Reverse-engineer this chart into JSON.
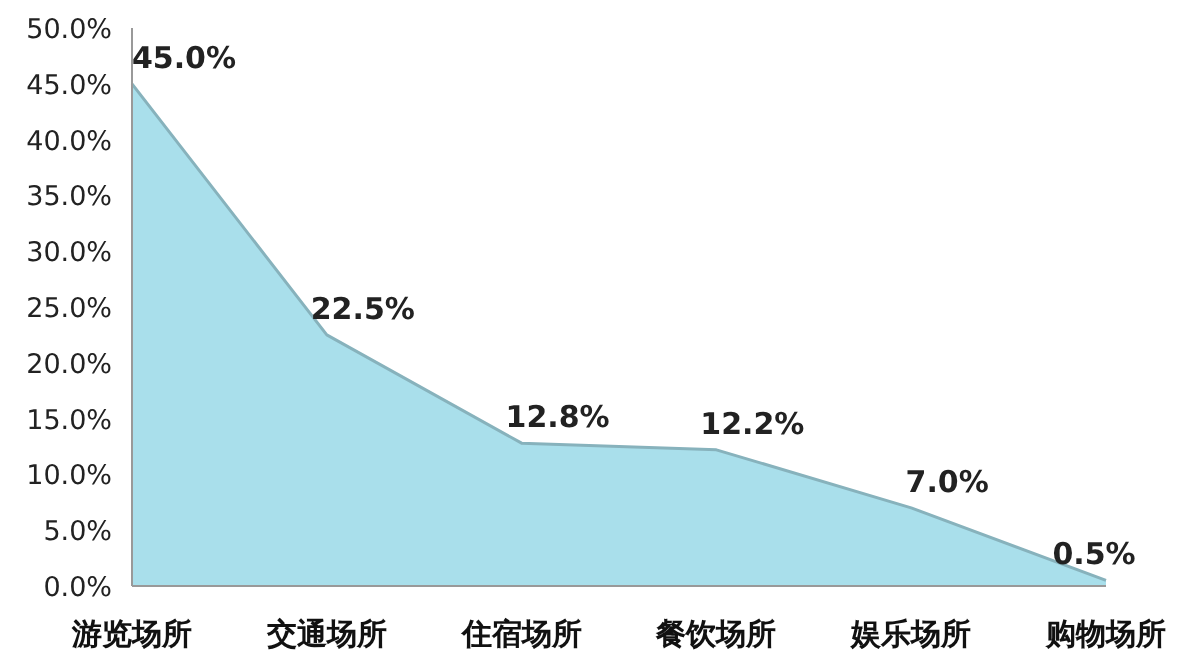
{
  "chart_data": {
    "type": "area",
    "categories": [
      "游览场所",
      "交通场所",
      "住宿场所",
      "餐饮场所",
      "娱乐场所",
      "购物场所"
    ],
    "values": [
      45.0,
      22.5,
      12.8,
      12.2,
      7.0,
      0.5
    ],
    "value_labels": [
      "45.0%",
      "22.5%",
      "12.8%",
      "12.2%",
      "7.0%",
      "0.5%"
    ],
    "color": "#a9dfeb",
    "ylim": [
      0,
      50
    ],
    "yticks": [
      {
        "value": 0,
        "label": "0.0%"
      },
      {
        "value": 5,
        "label": "5.0%"
      },
      {
        "value": 10,
        "label": "10.0%"
      },
      {
        "value": 15,
        "label": "15.0%"
      },
      {
        "value": 20,
        "label": "20.0%"
      },
      {
        "value": 25,
        "label": "25.0%"
      },
      {
        "value": 30,
        "label": "30.0%"
      },
      {
        "value": 35,
        "label": "35.0%"
      },
      {
        "value": 40,
        "label": "40.0%"
      },
      {
        "value": 45,
        "label": "45.0%"
      },
      {
        "value": 50,
        "label": "50.0%"
      }
    ],
    "grid": false
  }
}
